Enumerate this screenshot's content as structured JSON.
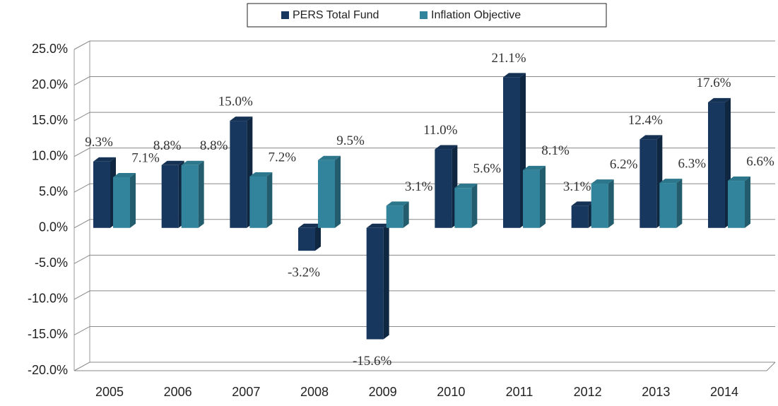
{
  "chart_data": {
    "type": "bar",
    "categories": [
      "2005",
      "2006",
      "2007",
      "2008",
      "2009",
      "2010",
      "2011",
      "2012",
      "2013",
      "2014"
    ],
    "series": [
      {
        "name": "PERS Total Fund",
        "color": "#17375e",
        "values": [
          9.3,
          8.8,
          15.0,
          -3.2,
          -15.6,
          11.0,
          21.1,
          3.1,
          12.4,
          17.6
        ],
        "value_labels": [
          "9.3%",
          "8.8%",
          "15.0%",
          "-3.2%",
          "-15.6%",
          "11.0%",
          "21.1%",
          "3.1%",
          "12.4%",
          "17.6%"
        ]
      },
      {
        "name": "Inflation Objective",
        "color": "#31849b",
        "values": [
          7.1,
          8.8,
          7.2,
          9.5,
          3.1,
          5.6,
          8.1,
          6.2,
          6.3,
          6.6
        ],
        "value_labels": [
          "7.1%",
          "8.8%",
          "7.2%",
          "9.5%",
          "3.1%",
          "5.6%",
          "8.1%",
          "6.2%",
          "6.3%",
          "6.6%"
        ]
      }
    ],
    "ylim": [
      -20,
      25
    ],
    "yticks": [
      {
        "value": -20,
        "label": "-20.0%"
      },
      {
        "value": -15,
        "label": "-15.0%"
      },
      {
        "value": -10,
        "label": "-10.0%"
      },
      {
        "value": -5,
        "label": "-5.0%"
      },
      {
        "value": 0,
        "label": "0.0%"
      },
      {
        "value": 5,
        "label": "5.0%"
      },
      {
        "value": 10,
        "label": "10.0%"
      },
      {
        "value": 15,
        "label": "15.0%"
      },
      {
        "value": 20,
        "label": "20.0%"
      },
      {
        "value": 25,
        "label": "25.0%"
      }
    ],
    "grid": true,
    "legend": "top"
  }
}
